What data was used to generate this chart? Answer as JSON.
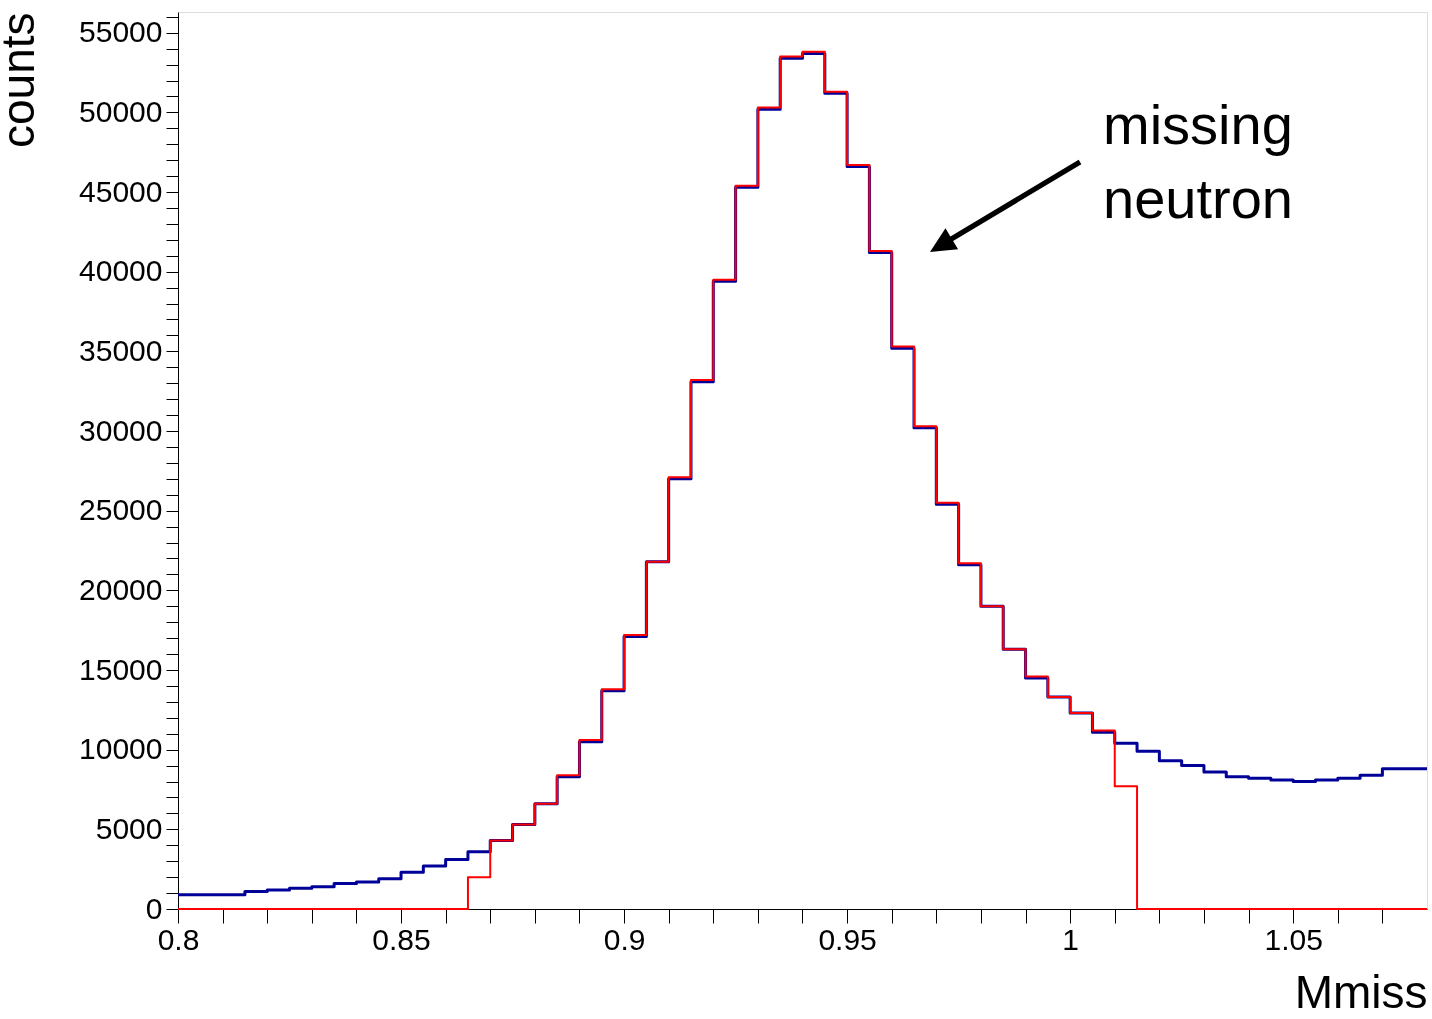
{
  "chart_data": {
    "type": "histogram",
    "ylabel": "counts",
    "xlabel": "Mmiss",
    "bins": [
      0.8,
      0.805,
      0.81,
      0.815,
      0.82,
      0.825,
      0.83,
      0.835,
      0.84,
      0.845,
      0.85,
      0.855,
      0.86,
      0.865,
      0.87,
      0.875,
      0.88,
      0.885,
      0.89,
      0.895,
      0.9,
      0.905,
      0.91,
      0.915,
      0.92,
      0.925,
      0.93,
      0.935,
      0.94,
      0.945,
      0.95,
      0.955,
      0.96,
      0.965,
      0.97,
      0.975,
      0.98,
      0.985,
      0.99,
      0.995,
      1.0,
      1.005,
      1.01,
      1.015,
      1.02,
      1.025,
      1.03,
      1.035,
      1.04,
      1.045,
      1.05,
      1.055,
      1.06,
      1.065,
      1.07,
      1.075,
      1.08
    ],
    "series": [
      {
        "color": "#000099",
        "values": [
          900,
          900,
          900,
          1100,
          1200,
          1300,
          1400,
          1600,
          1700,
          1900,
          2300,
          2700,
          3100,
          3600,
          4300,
          5300,
          6600,
          8300,
          10500,
          13700,
          17100,
          21800,
          27000,
          33100,
          39400,
          45300,
          50200,
          53400,
          53700,
          51200,
          46600,
          41200,
          35200,
          30200,
          25400,
          21600,
          19000,
          16300,
          14500,
          13300,
          12300,
          11100,
          10400,
          9900,
          9300,
          9000,
          8600,
          8300,
          8200,
          8100,
          8000,
          8100,
          8200,
          8400,
          8800,
          8800
        ]
      },
      {
        "color": "#ff0000",
        "values": [
          0,
          0,
          0,
          0,
          0,
          0,
          0,
          0,
          0,
          0,
          0,
          0,
          0,
          2000,
          4300,
          5300,
          6600,
          8400,
          10600,
          13800,
          17200,
          21800,
          27100,
          33200,
          39500,
          45400,
          50300,
          53500,
          53800,
          51300,
          46700,
          41300,
          35300,
          30300,
          25500,
          21700,
          19000,
          16300,
          14600,
          13300,
          12300,
          11200,
          7700,
          0,
          0,
          0,
          0,
          0,
          0,
          0,
          0,
          0,
          0,
          0,
          0,
          0
        ]
      }
    ],
    "xlim": [
      0.8,
      1.08
    ],
    "xticks": [
      {
        "value": 0.8,
        "label": "0.8"
      },
      {
        "value": 0.81,
        "label": null
      },
      {
        "value": 0.82,
        "label": null
      },
      {
        "value": 0.83,
        "label": null
      },
      {
        "value": 0.84,
        "label": null
      },
      {
        "value": 0.85,
        "label": "0.85"
      },
      {
        "value": 0.86,
        "label": null
      },
      {
        "value": 0.87,
        "label": null
      },
      {
        "value": 0.88,
        "label": null
      },
      {
        "value": 0.89,
        "label": null
      },
      {
        "value": 0.9,
        "label": "0.9"
      },
      {
        "value": 0.91,
        "label": null
      },
      {
        "value": 0.92,
        "label": null
      },
      {
        "value": 0.93,
        "label": null
      },
      {
        "value": 0.94,
        "label": null
      },
      {
        "value": 0.95,
        "label": "0.95"
      },
      {
        "value": 0.96,
        "label": null
      },
      {
        "value": 0.97,
        "label": null
      },
      {
        "value": 0.98,
        "label": null
      },
      {
        "value": 0.99,
        "label": null
      },
      {
        "value": 1.0,
        "label": "1"
      },
      {
        "value": 1.01,
        "label": null
      },
      {
        "value": 1.02,
        "label": null
      },
      {
        "value": 1.03,
        "label": null
      },
      {
        "value": 1.04,
        "label": null
      },
      {
        "value": 1.05,
        "label": "1.05"
      },
      {
        "value": 1.06,
        "label": null
      },
      {
        "value": 1.07,
        "label": null
      }
    ],
    "ylim": [
      0,
      56300
    ],
    "yticks": [
      0,
      {
        "value": 1000,
        "label": null
      },
      {
        "value": 2000,
        "label": null
      },
      {
        "value": 3000,
        "label": null
      },
      {
        "value": 4000,
        "label": null
      },
      5000,
      {
        "value": 6000,
        "label": null
      },
      {
        "value": 7000,
        "label": null
      },
      {
        "value": 8000,
        "label": null
      },
      {
        "value": 9000,
        "label": null
      },
      10000,
      {
        "value": 11000,
        "label": null
      },
      {
        "value": 12000,
        "label": null
      },
      {
        "value": 13000,
        "label": null
      },
      {
        "value": 14000,
        "label": null
      },
      15000,
      {
        "value": 16000,
        "label": null
      },
      {
        "value": 17000,
        "label": null
      },
      {
        "value": 18000,
        "label": null
      },
      {
        "value": 19000,
        "label": null
      },
      20000,
      {
        "value": 21000,
        "label": null
      },
      {
        "value": 22000,
        "label": null
      },
      {
        "value": 23000,
        "label": null
      },
      {
        "value": 24000,
        "label": null
      },
      25000,
      {
        "value": 26000,
        "label": null
      },
      {
        "value": 27000,
        "label": null
      },
      {
        "value": 28000,
        "label": null
      },
      {
        "value": 29000,
        "label": null
      },
      30000,
      {
        "value": 31000,
        "label": null
      },
      {
        "value": 32000,
        "label": null
      },
      {
        "value": 33000,
        "label": null
      },
      {
        "value": 34000,
        "label": null
      },
      35000,
      {
        "value": 36000,
        "label": null
      },
      {
        "value": 37000,
        "label": null
      },
      {
        "value": 38000,
        "label": null
      },
      {
        "value": 39000,
        "label": null
      },
      40000,
      {
        "value": 41000,
        "label": null
      },
      {
        "value": 42000,
        "label": null
      },
      {
        "value": 43000,
        "label": null
      },
      {
        "value": 44000,
        "label": null
      },
      45000,
      {
        "value": 46000,
        "label": null
      },
      {
        "value": 47000,
        "label": null
      },
      {
        "value": 48000,
        "label": null
      },
      {
        "value": 49000,
        "label": null
      },
      50000,
      {
        "value": 51000,
        "label": null
      },
      {
        "value": 52000,
        "label": null
      },
      {
        "value": 53000,
        "label": null
      },
      {
        "value": 54000,
        "label": null
      },
      55000,
      {
        "value": 56000,
        "label": null
      }
    ],
    "grid": false,
    "annotations": [
      "missing\nneutron"
    ]
  }
}
